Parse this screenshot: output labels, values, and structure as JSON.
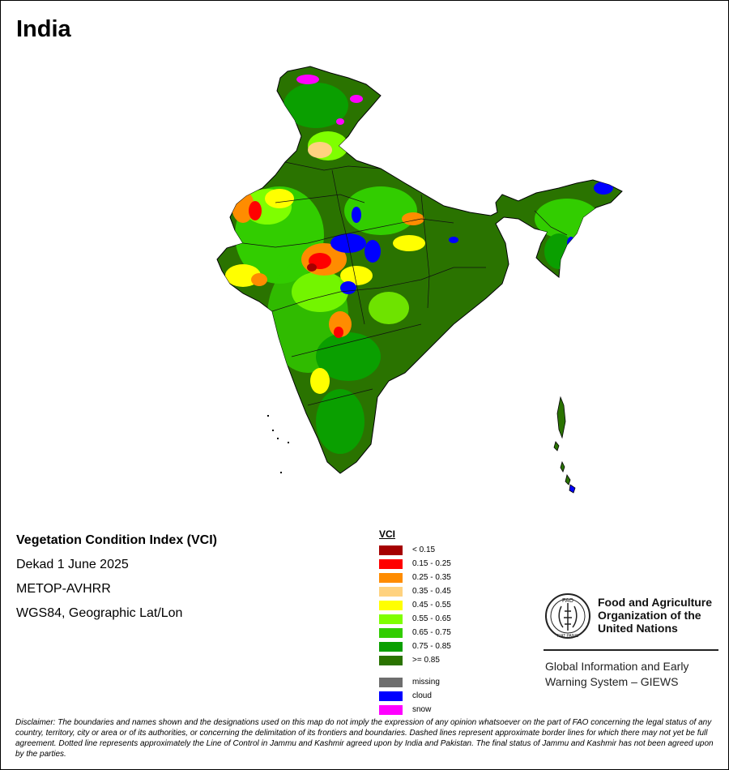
{
  "title": "India",
  "info": {
    "index_name": "Vegetation Condition Index (VCI)",
    "period": "Dekad 1 June 2025",
    "sensor": "METOP-AVHRR",
    "projection": "WGS84, Geographic Lat/Lon"
  },
  "legend": {
    "title": "VCI",
    "classes": [
      {
        "label": "< 0.15",
        "color": "#a50000"
      },
      {
        "label": "0.15 - 0.25",
        "color": "#ff0000"
      },
      {
        "label": "0.25 - 0.35",
        "color": "#ff8c00"
      },
      {
        "label": "0.35 - 0.45",
        "color": "#ffd27f"
      },
      {
        "label": "0.45 - 0.55",
        "color": "#ffff00"
      },
      {
        "label": "0.55 - 0.65",
        "color": "#7fff00"
      },
      {
        "label": "0.65 - 0.75",
        "color": "#32cd00"
      },
      {
        "label": "0.75 - 0.85",
        "color": "#0a9f00"
      },
      {
        "label": ">= 0.85",
        "color": "#2a7300"
      }
    ],
    "extras": [
      {
        "label": "missing",
        "color": "#6e6e6e"
      },
      {
        "label": "cloud",
        "color": "#0000ff"
      },
      {
        "label": "snow",
        "color": "#ff00ff"
      }
    ]
  },
  "organization": {
    "name": "Food and Agriculture Organization of the United Nations",
    "logo_letters": "FAO",
    "logo_motto": "FIAT PANIS",
    "system": "Global Information and Early Warning System – GIEWS"
  },
  "disclaimer": "Disclaimer: The boundaries and names shown and the designations used on this map do not imply the expression of any opinion whatsoever on the part of FAO concerning the legal status of any country, territory, city or area or of its authorities, or concerning the delimitation of its frontiers and boundaries. Dashed lines represent approximate border lines for which there may not yet be full agreement. Dotted line represents approximately the Line of Control in Jammu and Kashmir agreed upon by India and Pakistan. The final status of Jammu and Kashmir has not been agreed upon by the parties."
}
